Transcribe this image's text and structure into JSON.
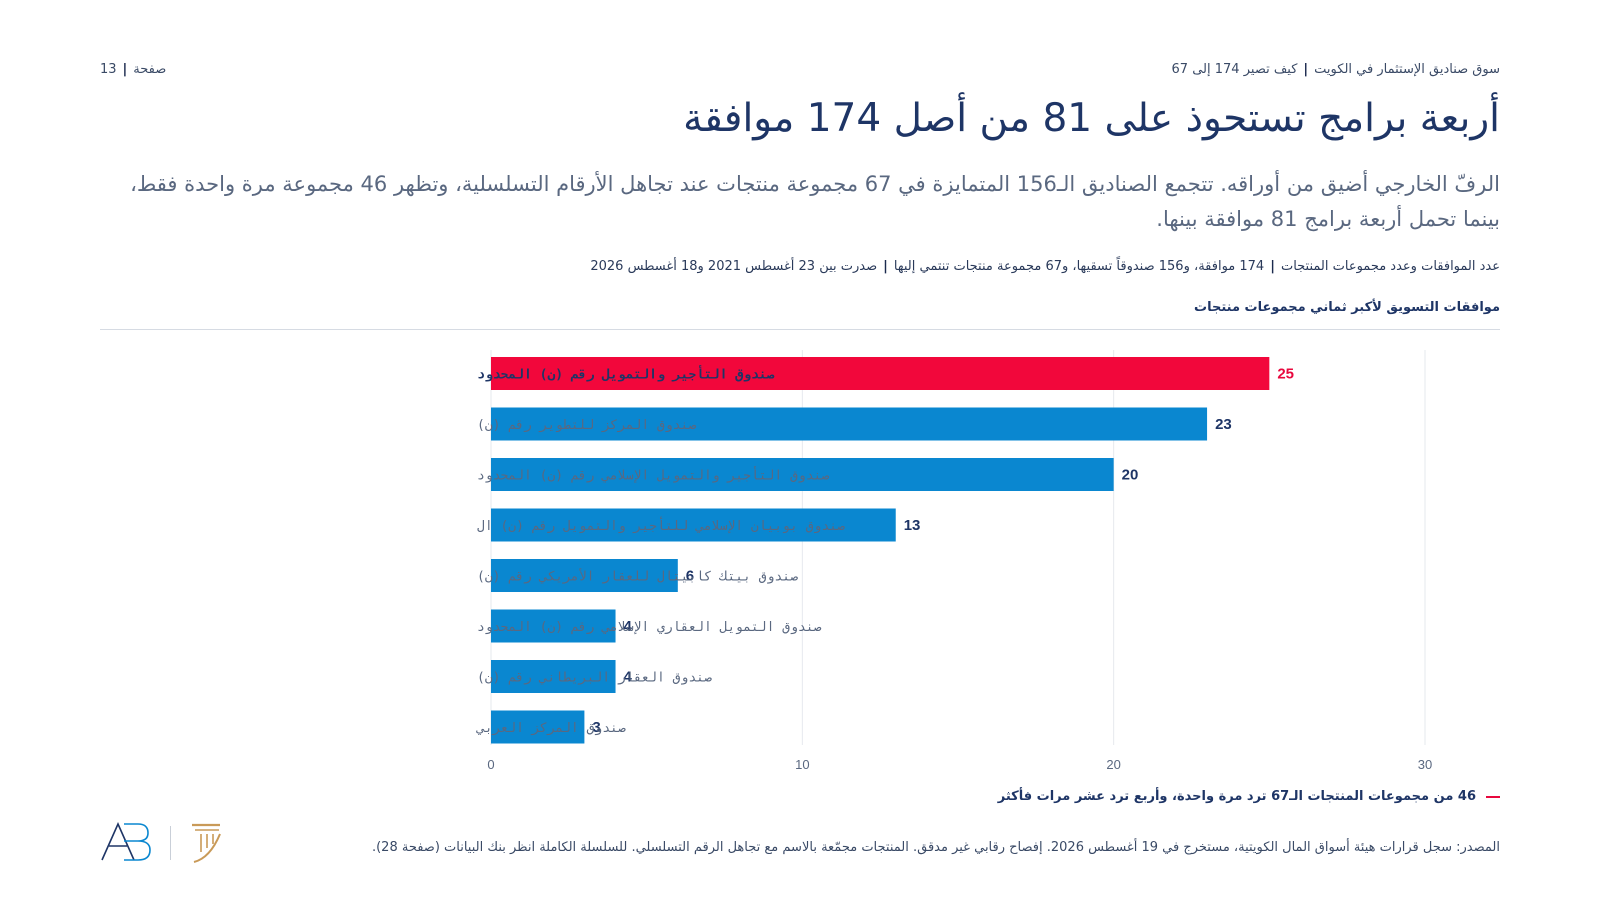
{
  "header": {
    "page_label": "صفحة",
    "page_number": "13",
    "report_title": "سوق صناديق الإستثمار في الكويت",
    "section_title": "كيف تصير 174 إلى 67"
  },
  "title": "أربعة برامج تستحوذ على 81 من أصل 174 موافقة",
  "subtitle": "الرفّ الخارجي أضيق من أوراقه. تتجمع الصناديق الـ156 المتمايزة في 67 مجموعة منتجات عند تجاهل الأرقام التسلسلية، وتظهر 46 مجموعة مرة واحدة فقط، بينما تحمل أربعة برامج 81 موافقة بينها.",
  "meta": {
    "part1": "عدد الموافقات وعدد مجموعات المنتجات",
    "part2": "174 موافقة، و156 صندوقاً تسقيها، و67 مجموعة منتجات تنتمي إليها",
    "part3": "صدرت بين 23 أغسطس 2021 و18 أغسطس 2026"
  },
  "chart_heading": "موافقات التسويق لأكبر ثماني مجموعات منتجات",
  "chart_data": {
    "type": "bar",
    "orientation": "horizontal",
    "categories": [
      "صندوق التأجير والتمويل رقم (ن) المحدود",
      "صندوق المركز للتطوير رقم (ن)",
      "صندوق التأجير والتمويل الإسلامي رقم (ن) المحدود",
      "صندوق بوبيان الإسلامي للتأجير والتمويل رقم (ن) ال",
      "صندوق بيتك كابيتال للعقار الأمريكي رقم (ن)",
      "صندوق التمويل العقاري الإسلامي رقم (ن) المحدود",
      "صندوق العقار البريطاني رقم (ن)",
      "صندوق المركز العربي"
    ],
    "values": [
      25,
      23,
      20,
      13,
      6,
      4,
      4,
      3
    ],
    "highlight_index": 0,
    "xlim": [
      0,
      30
    ],
    "xticks": [
      "0",
      "10",
      "20",
      "30"
    ],
    "grid": true,
    "colors": {
      "bar": "#0a87d0",
      "highlight": "#f2073b",
      "label": "#1e3566",
      "highlight_label": "#e8083e"
    }
  },
  "note": "46 من مجموعات المنتجات الـ67 ترد مرة واحدة، وأربع ترد عشر مرات فأكثر",
  "source": "المصدر: سجل قرارات هيئة أسواق المال الكويتية، مستخرج في 19 أغسطس 2026. إفصاح رقابي غير مدقق. المنتجات مجمّعة بالاسم مع تجاهل الرقم التسلسلي. للسلسلة الكاملة انظر بنك البيانات (صفحة 28).",
  "logos": {
    "left": "AB",
    "right": "column-logo"
  }
}
